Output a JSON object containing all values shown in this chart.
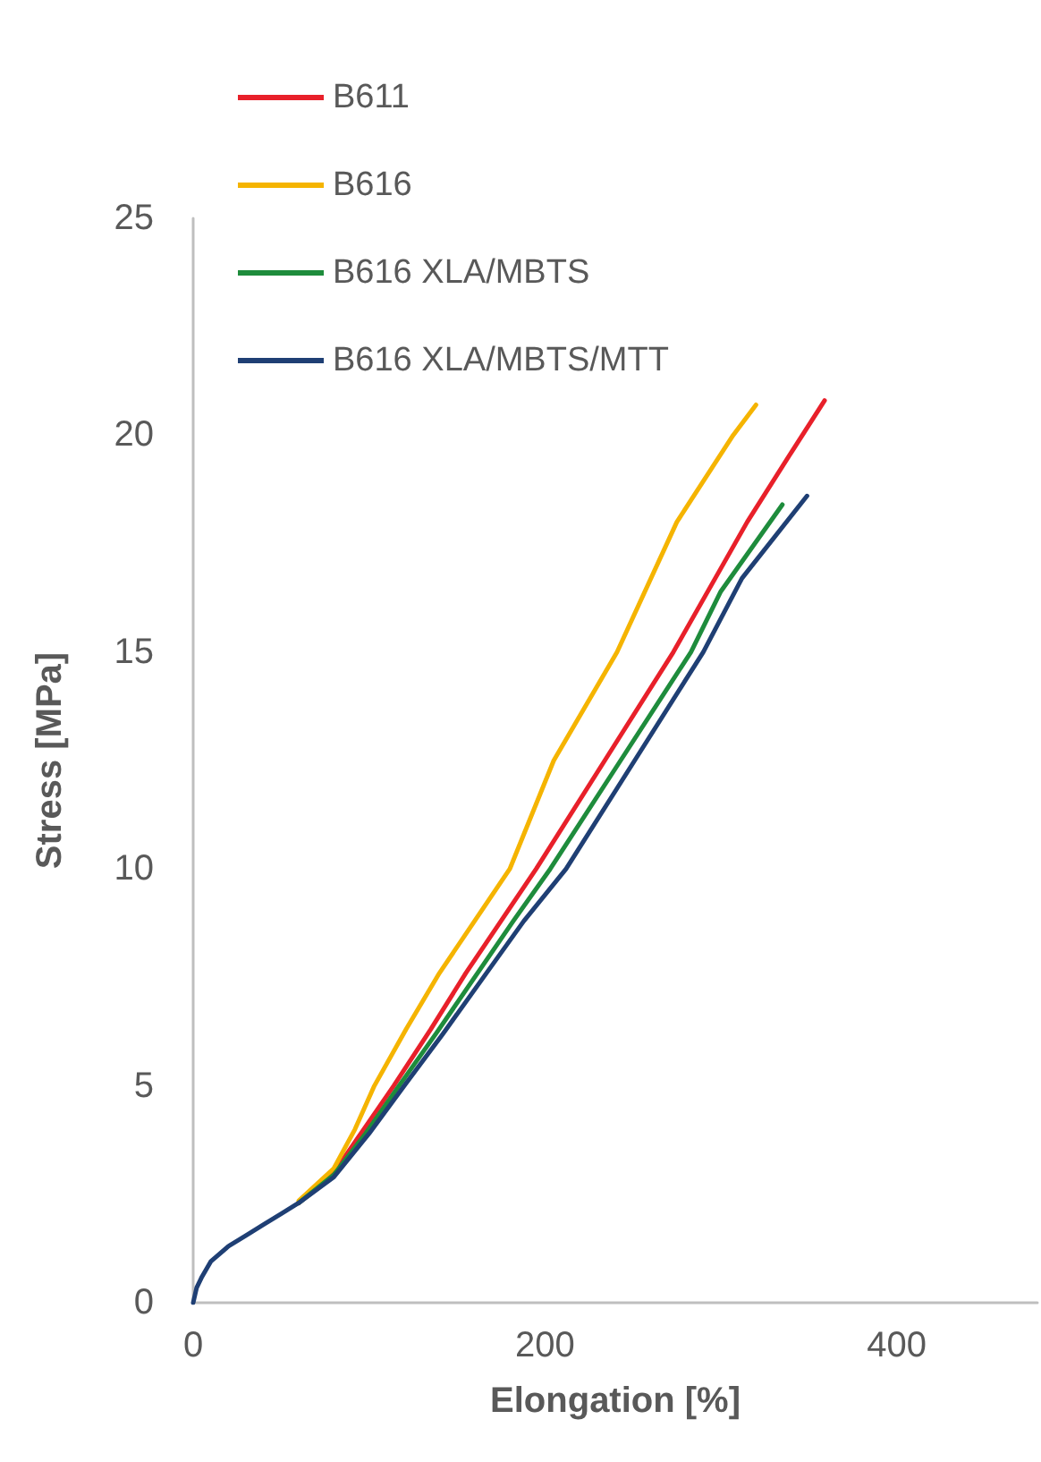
{
  "chart_data": {
    "type": "line",
    "xlabel": "Elongation [%]",
    "ylabel": "Stress [MPa]",
    "xlim": [
      0,
      480
    ],
    "xticks": [
      0,
      200,
      400
    ],
    "ylim": [
      0,
      25
    ],
    "yticks": [
      0,
      5,
      10,
      15,
      20,
      25
    ],
    "grid": false,
    "legend": "top left",
    "marker": "none",
    "line_style": "solid",
    "series": [
      {
        "name": "B611",
        "color": "#e8202a",
        "x": [
          60,
          80,
          97,
          114,
          135,
          155,
          175,
          195,
          234,
          273,
          315,
          340,
          359
        ],
        "values": [
          2.3,
          3.0,
          4.0,
          5,
          6.3,
          7.6,
          8.8,
          10,
          12.5,
          15,
          18,
          19.6,
          20.8
        ]
      },
      {
        "name": "B616",
        "color": "#f5b400",
        "x": [
          60,
          80,
          92,
          103,
          121,
          140,
          160,
          180,
          205,
          241,
          275,
          307,
          320
        ],
        "values": [
          2.35,
          3.1,
          4.0,
          5,
          6.3,
          7.6,
          8.8,
          10,
          12.5,
          15,
          18,
          20,
          20.7
        ]
      },
      {
        "name": "B616 XLA/MBTS",
        "color": "#1e8c3c",
        "x": [
          60,
          80,
          98,
          117,
          138,
          160,
          182,
          203,
          243,
          283,
          300,
          335
        ],
        "values": [
          2.3,
          2.95,
          3.9,
          5,
          6.2,
          7.5,
          8.8,
          10,
          12.5,
          15,
          16.4,
          18.4
        ]
      },
      {
        "name": "B616 XLA/MBTS/MTT",
        "color": "#1f3f74",
        "x": [
          0,
          2,
          5,
          10,
          20,
          30,
          40,
          50,
          60,
          80,
          100,
          120,
          142,
          165,
          188,
          212,
          251,
          290,
          312,
          349
        ],
        "values": [
          0,
          0.35,
          0.6,
          0.95,
          1.3,
          1.55,
          1.8,
          2.05,
          2.3,
          2.9,
          3.9,
          5,
          6.2,
          7.5,
          8.8,
          10,
          12.5,
          15,
          16.7,
          18.6
        ]
      }
    ]
  }
}
